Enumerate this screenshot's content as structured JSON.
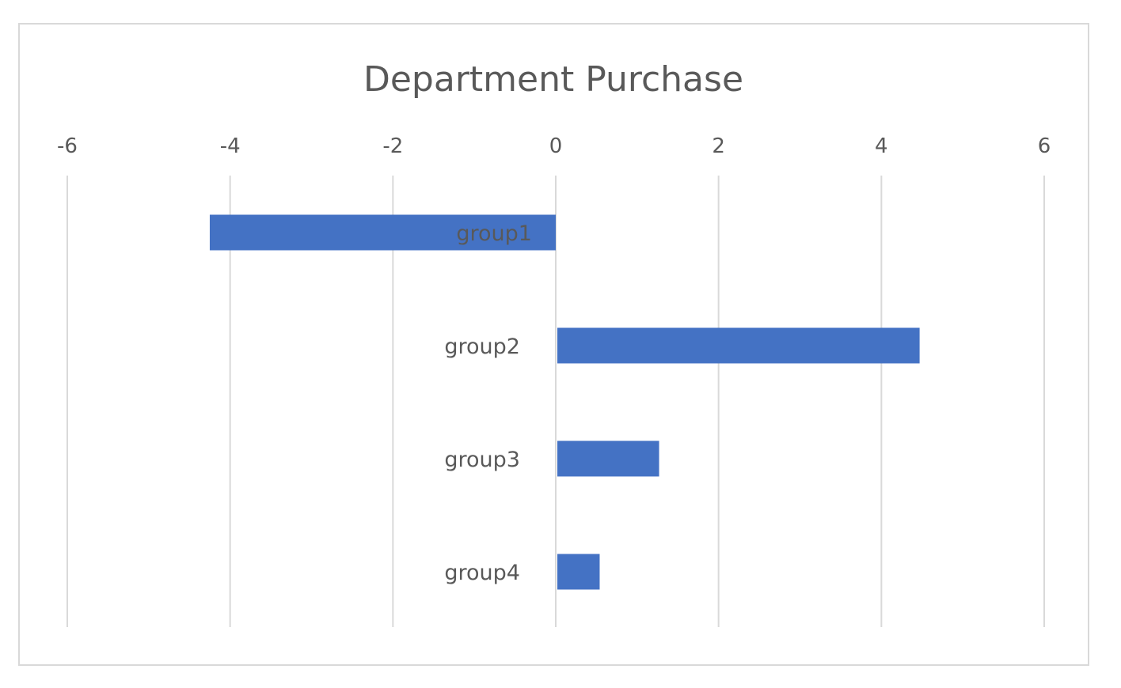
{
  "chart_data": {
    "type": "bar",
    "orientation": "horizontal",
    "title": "Department Purchase",
    "xlabel": "",
    "ylabel": "",
    "categories": [
      "group1",
      "group2",
      "group3",
      "group4"
    ],
    "values": [
      -4.25,
      4.45,
      1.25,
      0.52
    ],
    "xlim": [
      -6,
      6
    ],
    "x_ticks": [
      "-6",
      "-4",
      "-2",
      "0",
      "2",
      "4",
      "6"
    ],
    "x_tick_values": [
      -6,
      -4,
      -2,
      0,
      2,
      4,
      6
    ],
    "grid": "vertical",
    "legend": "none",
    "axis_position": "top",
    "colors": {
      "bar": "#4472c4",
      "grid": "#d9d9d9",
      "text": "#595959",
      "border": "#d9d9d9"
    }
  }
}
